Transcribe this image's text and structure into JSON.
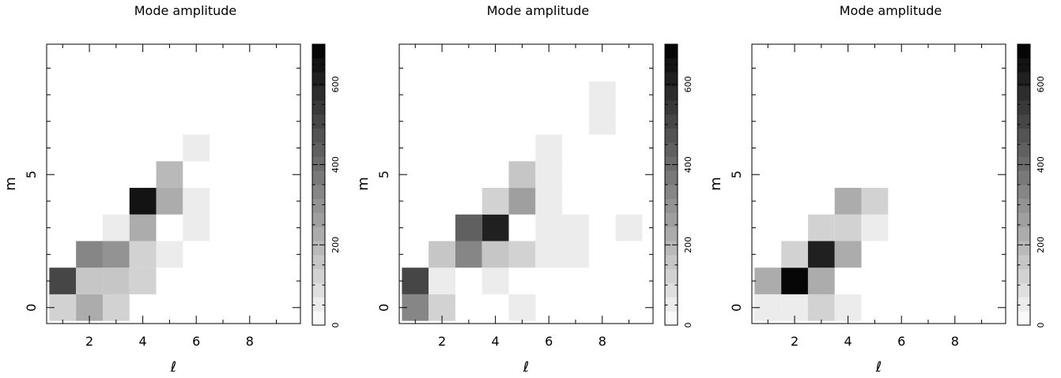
{
  "chart_data": [
    {
      "type": "heatmap",
      "title": "Mode amplitude",
      "xlabel": "ℓ",
      "ylabel": "m",
      "xlim": [
        0.4,
        9.9
      ],
      "ylim": [
        -0.6,
        9.9
      ],
      "xticks": [
        2,
        4,
        6,
        8
      ],
      "yticks": [
        0,
        5
      ],
      "colorbar": {
        "range": [
          0,
          700
        ],
        "ticks": [
          0,
          200,
          400,
          600
        ],
        "step": 35
      },
      "cells": [
        {
          "l": 1,
          "m": 0,
          "value": 120
        },
        {
          "l": 2,
          "m": 0,
          "value": 230
        },
        {
          "l": 3,
          "m": 0,
          "value": 110
        },
        {
          "l": 1,
          "m": 1,
          "value": 490
        },
        {
          "l": 2,
          "m": 1,
          "value": 140
        },
        {
          "l": 3,
          "m": 1,
          "value": 140
        },
        {
          "l": 4,
          "m": 1,
          "value": 110
        },
        {
          "l": 2,
          "m": 2,
          "value": 330
        },
        {
          "l": 3,
          "m": 2,
          "value": 280
        },
        {
          "l": 4,
          "m": 2,
          "value": 110
        },
        {
          "l": 5,
          "m": 2,
          "value": 60
        },
        {
          "l": 3,
          "m": 3,
          "value": 60
        },
        {
          "l": 4,
          "m": 3,
          "value": 230
        },
        {
          "l": 6,
          "m": 3,
          "value": 60
        },
        {
          "l": 4,
          "m": 4,
          "value": 650
        },
        {
          "l": 5,
          "m": 4,
          "value": 230
        },
        {
          "l": 6,
          "m": 4,
          "value": 60
        },
        {
          "l": 5,
          "m": 5,
          "value": 180
        },
        {
          "l": 6,
          "m": 6,
          "value": 60
        }
      ]
    },
    {
      "type": "heatmap",
      "title": "Mode amplitude",
      "xlabel": "ℓ",
      "ylabel": "m",
      "xlim": [
        0.4,
        9.9
      ],
      "ylim": [
        -0.6,
        9.9
      ],
      "xticks": [
        2,
        4,
        6,
        8
      ],
      "yticks": [
        0,
        5
      ],
      "colorbar": {
        "range": [
          0,
          700
        ],
        "ticks": [
          0,
          200,
          400,
          600
        ],
        "step": 35
      },
      "cells": [
        {
          "l": 1,
          "m": 0,
          "value": 320
        },
        {
          "l": 2,
          "m": 0,
          "value": 120
        },
        {
          "l": 5,
          "m": 0,
          "value": 60
        },
        {
          "l": 1,
          "m": 1,
          "value": 490
        },
        {
          "l": 2,
          "m": 1,
          "value": 60
        },
        {
          "l": 4,
          "m": 1,
          "value": 60
        },
        {
          "l": 2,
          "m": 2,
          "value": 160
        },
        {
          "l": 3,
          "m": 2,
          "value": 320
        },
        {
          "l": 4,
          "m": 2,
          "value": 160
        },
        {
          "l": 5,
          "m": 2,
          "value": 110
        },
        {
          "l": 6,
          "m": 2,
          "value": 60
        },
        {
          "l": 7,
          "m": 2,
          "value": 60
        },
        {
          "l": 3,
          "m": 3,
          "value": 420
        },
        {
          "l": 4,
          "m": 3,
          "value": 600
        },
        {
          "l": 6,
          "m": 3,
          "value": 60
        },
        {
          "l": 7,
          "m": 3,
          "value": 60
        },
        {
          "l": 9,
          "m": 3,
          "value": 60
        },
        {
          "l": 4,
          "m": 4,
          "value": 110
        },
        {
          "l": 5,
          "m": 4,
          "value": 270
        },
        {
          "l": 6,
          "m": 4,
          "value": 60
        },
        {
          "l": 5,
          "m": 5,
          "value": 160
        },
        {
          "l": 6,
          "m": 5,
          "value": 60
        },
        {
          "l": 6,
          "m": 6,
          "value": 60
        },
        {
          "l": 8,
          "m": 7,
          "value": 60
        },
        {
          "l": 8,
          "m": 8,
          "value": 60
        }
      ]
    },
    {
      "type": "heatmap",
      "title": "Mode amplitude",
      "xlabel": "ℓ",
      "ylabel": "m",
      "xlim": [
        0.4,
        9.9
      ],
      "ylim": [
        -0.6,
        9.9
      ],
      "xticks": [
        2,
        4,
        6,
        8
      ],
      "yticks": [
        0,
        5
      ],
      "colorbar": {
        "range": [
          0,
          700
        ],
        "ticks": [
          0,
          200,
          400,
          600
        ],
        "step": 35
      },
      "cells": [
        {
          "l": 1,
          "m": 0,
          "value": 60
        },
        {
          "l": 2,
          "m": 0,
          "value": 60
        },
        {
          "l": 3,
          "m": 0,
          "value": 120
        },
        {
          "l": 4,
          "m": 0,
          "value": 60
        },
        {
          "l": 1,
          "m": 1,
          "value": 230
        },
        {
          "l": 2,
          "m": 1,
          "value": 690
        },
        {
          "l": 3,
          "m": 1,
          "value": 230
        },
        {
          "l": 2,
          "m": 2,
          "value": 110
        },
        {
          "l": 3,
          "m": 2,
          "value": 600
        },
        {
          "l": 4,
          "m": 2,
          "value": 230
        },
        {
          "l": 3,
          "m": 3,
          "value": 130
        },
        {
          "l": 4,
          "m": 3,
          "value": 130
        },
        {
          "l": 5,
          "m": 3,
          "value": 60
        },
        {
          "l": 4,
          "m": 4,
          "value": 230
        },
        {
          "l": 5,
          "m": 4,
          "value": 110
        }
      ]
    }
  ]
}
